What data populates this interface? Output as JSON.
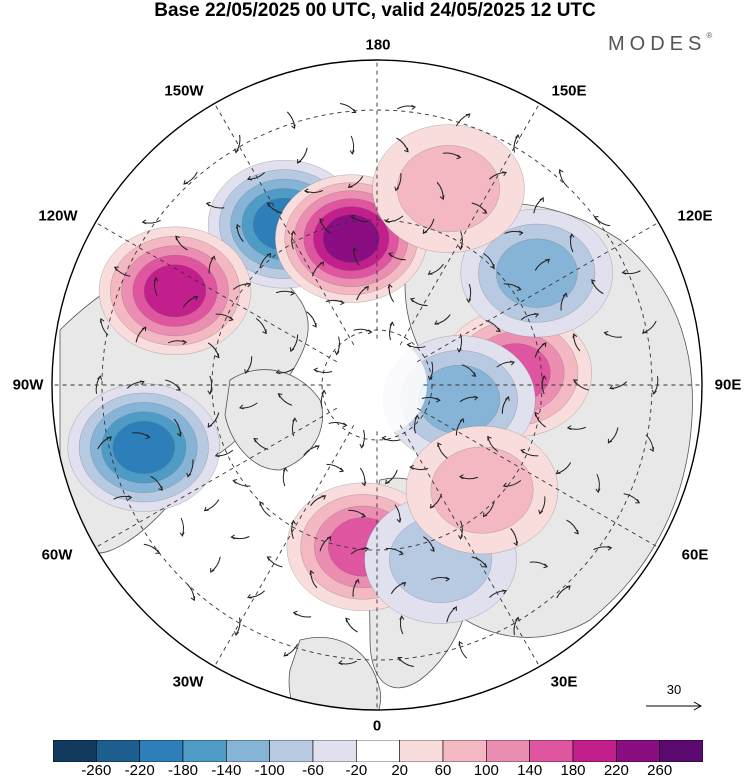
{
  "title": "Base 22/05/2025 00 UTC, valid 24/05/2025 12 UTC",
  "brand": {
    "text": "MODES",
    "mark": "®"
  },
  "longitude_labels": {
    "top": "180",
    "bottom": "0",
    "left": "90W",
    "right": "90E",
    "top_left": "150W",
    "upper_left": "120W",
    "lower_left": "60W",
    "bottom_left": "30W",
    "top_right": "150E",
    "upper_right": "120E",
    "lower_right": "60E",
    "bottom_right": "30E"
  },
  "reference_vector": {
    "value": "30"
  },
  "colorbar": {
    "colors": [
      "#123a5c",
      "#1c5f8f",
      "#2c7fb8",
      "#4e9cc6",
      "#86b4d6",
      "#b8c9e2",
      "#e0e0ef",
      "#ffffff",
      "#f9dcdc",
      "#f3b8c2",
      "#ec8db2",
      "#e0559f",
      "#c21f8c",
      "#8a0d82",
      "#5a0a6e"
    ],
    "labels": [
      "-260",
      "-220",
      "-180",
      "-140",
      "-100",
      "-60",
      "-20",
      "20",
      "60",
      "100",
      "140",
      "180",
      "220",
      "260"
    ]
  },
  "anomalies": [
    {
      "name": "blue-low-150W",
      "lon": -150,
      "lat": 50,
      "value": -200
    },
    {
      "name": "purple-high-170W",
      "lon": -170,
      "lat": 58,
      "value": 250
    },
    {
      "name": "pink-high-115W",
      "lon": -115,
      "lat": 42,
      "value": 180
    },
    {
      "name": "blue-low-75W",
      "lon": -75,
      "lat": 38,
      "value": -190
    },
    {
      "name": "pink-high-95E",
      "lon": 95,
      "lat": 60,
      "value": 170
    },
    {
      "name": "blue-low-125E",
      "lon": 125,
      "lat": 48,
      "value": -110
    },
    {
      "name": "blue-low-80E",
      "lon": 80,
      "lat": 72,
      "value": -120
    },
    {
      "name": "pink-high-160E",
      "lon": 160,
      "lat": 45,
      "value": 80
    },
    {
      "name": "pink-high-5W",
      "lon": -5,
      "lat": 55,
      "value": 140
    },
    {
      "name": "blue-low-20E",
      "lon": 20,
      "lat": 50,
      "value": -90
    },
    {
      "name": "pink-high-45E",
      "lon": 45,
      "lat": 58,
      "value": 80
    }
  ]
}
